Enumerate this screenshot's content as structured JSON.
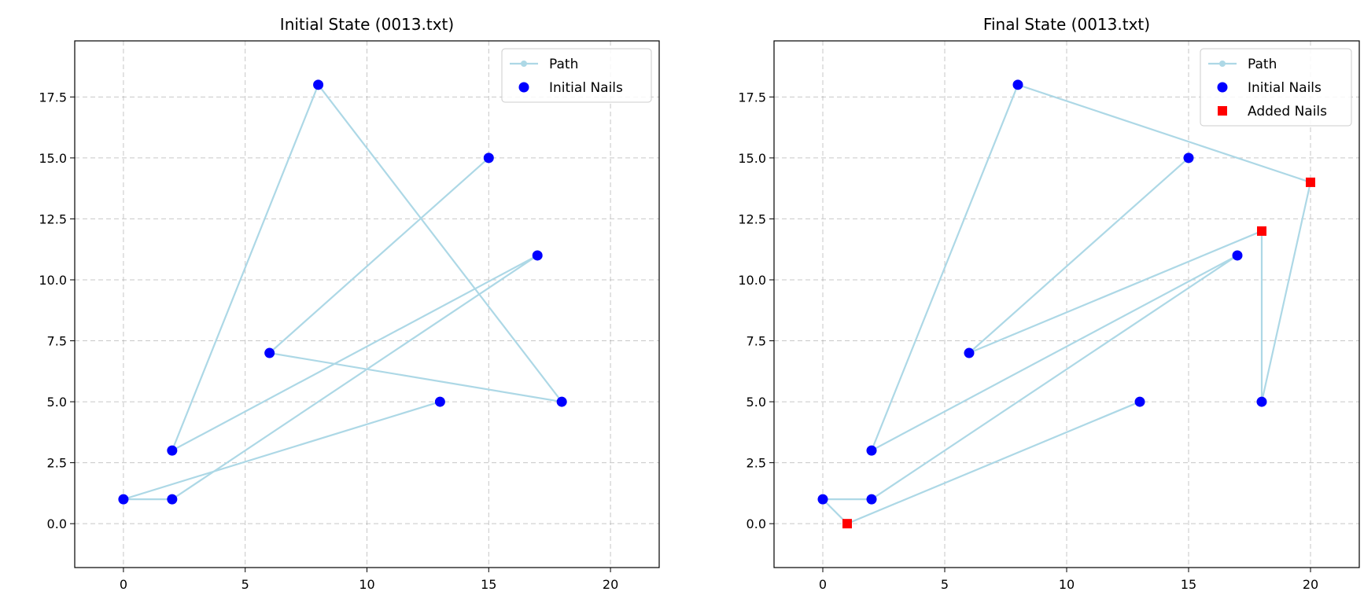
{
  "chart_data": [
    {
      "type": "scatter",
      "title": "Initial State (0013.txt)",
      "xlim": [
        -2,
        22
      ],
      "ylim": [
        -1.8,
        19.8
      ],
      "xticks": [
        "0",
        "5",
        "10",
        "15",
        "20"
      ],
      "yticks": [
        "0.0",
        "2.5",
        "5.0",
        "7.5",
        "10.0",
        "12.5",
        "15.0",
        "17.5"
      ],
      "grid": true,
      "legend": "top-right",
      "series": [
        {
          "name": "Path",
          "kind": "line",
          "color": "#add8e6",
          "points": [
            [
              2,
              1
            ],
            [
              0,
              1
            ],
            [
              13,
              5
            ],
            [
              13,
              5
            ]
          ],
          "path": [
            [
              2,
              1
            ],
            [
              17,
              11
            ],
            [
              2,
              3
            ],
            [
              8,
              18
            ],
            [
              18,
              5
            ],
            [
              6,
              7
            ],
            [
              15,
              15
            ]
          ],
          "path_full": [
            [
              0,
              1
            ],
            [
              2,
              1
            ],
            [
              17,
              11
            ],
            [
              2,
              3
            ],
            [
              8,
              18
            ],
            [
              18,
              5
            ],
            [
              6,
              7
            ],
            [
              15,
              15
            ]
          ],
          "extra": [
            [
              0,
              1
            ],
            [
              13,
              5
            ]
          ]
        },
        {
          "name": "Initial Nails",
          "kind": "scatter",
          "color": "#0000ff",
          "marker": "circle",
          "points": [
            [
              0,
              1
            ],
            [
              2,
              1
            ],
            [
              2,
              3
            ],
            [
              6,
              7
            ],
            [
              8,
              18
            ],
            [
              13,
              5
            ],
            [
              15,
              15
            ],
            [
              17,
              11
            ],
            [
              18,
              5
            ]
          ]
        }
      ]
    },
    {
      "type": "scatter",
      "title": "Final State (0013.txt)",
      "xlim": [
        -2,
        22
      ],
      "ylim": [
        -1.8,
        19.8
      ],
      "xticks": [
        "0",
        "5",
        "10",
        "15",
        "20"
      ],
      "yticks": [
        "0.0",
        "2.5",
        "5.0",
        "7.5",
        "10.0",
        "12.5",
        "15.0",
        "17.5"
      ],
      "grid": true,
      "legend": "top-right",
      "series": [
        {
          "name": "Path",
          "kind": "line",
          "color": "#add8e6",
          "path_full": [
            [
              13,
              5
            ],
            [
              1,
              0
            ],
            [
              0,
              1
            ],
            [
              2,
              1
            ],
            [
              17,
              11
            ],
            [
              2,
              3
            ],
            [
              8,
              18
            ],
            [
              20,
              14
            ],
            [
              18,
              5
            ],
            [
              18,
              12
            ],
            [
              6,
              7
            ],
            [
              15,
              15
            ]
          ]
        },
        {
          "name": "Initial Nails",
          "kind": "scatter",
          "color": "#0000ff",
          "marker": "circle",
          "points": [
            [
              0,
              1
            ],
            [
              2,
              1
            ],
            [
              2,
              3
            ],
            [
              6,
              7
            ],
            [
              8,
              18
            ],
            [
              13,
              5
            ],
            [
              15,
              15
            ],
            [
              17,
              11
            ],
            [
              18,
              5
            ]
          ]
        },
        {
          "name": "Added Nails",
          "kind": "scatter",
          "color": "#ff0000",
          "marker": "square",
          "points": [
            [
              1,
              0
            ],
            [
              18,
              12
            ],
            [
              20,
              14
            ]
          ]
        }
      ]
    }
  ]
}
